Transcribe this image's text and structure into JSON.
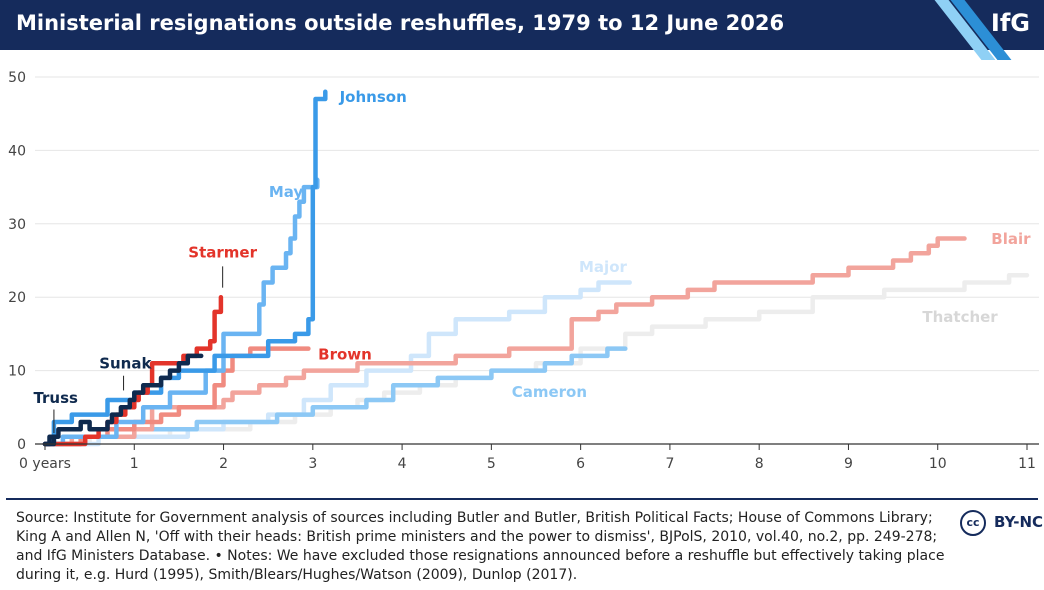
{
  "header": {
    "title": "Ministerial resignations outside reshuffles, 1979 to 12 June 2026",
    "logo": "IfG"
  },
  "footer": {
    "source": "Source: Institute for Government analysis of sources including Butler and Butler, British Political Facts; House of Commons Library; King A and Allen N, 'Off with their heads: British prime ministers and the power to dismiss', BJPolS, 2010, vol.40, no.2, pp. 249-278; and IfG Ministers Database. • Notes: We have excluded those resignations announced before a reshuffle but effectively taking place during it, e.g. Hurd (1995), Smith/Blears/Hughes/Watson (2009), Dunlop (2017).",
    "license_icon": "cc",
    "license": "BY-NC"
  },
  "chart_data": {
    "type": "line",
    "title": "Ministerial resignations outside reshuffles, 1979 to 12 June 2026",
    "xlabel": "",
    "ylabel": "",
    "xlim": [
      0,
      11
    ],
    "ylim": [
      0,
      50
    ],
    "x_ticks": [
      "0 years",
      "1",
      "2",
      "3",
      "4",
      "5",
      "6",
      "7",
      "8",
      "9",
      "10",
      "11"
    ],
    "y_ticks": [
      "0",
      "10",
      "20",
      "30",
      "40",
      "50"
    ],
    "grid": true,
    "series": [
      {
        "name": "Thatcher",
        "color": "#ededed",
        "points": [
          [
            0,
            0
          ],
          [
            0.5,
            0
          ],
          [
            0.5,
            1
          ],
          [
            1.4,
            1
          ],
          [
            1.4,
            2
          ],
          [
            2.3,
            2
          ],
          [
            2.3,
            3
          ],
          [
            2.8,
            3
          ],
          [
            2.8,
            4
          ],
          [
            3.2,
            4
          ],
          [
            3.2,
            5
          ],
          [
            3.5,
            5
          ],
          [
            3.5,
            6
          ],
          [
            3.8,
            6
          ],
          [
            3.8,
            7
          ],
          [
            4.2,
            7
          ],
          [
            4.2,
            8
          ],
          [
            4.6,
            8
          ],
          [
            4.6,
            9
          ],
          [
            5.0,
            9
          ],
          [
            5.0,
            10
          ],
          [
            5.5,
            10
          ],
          [
            5.5,
            11
          ],
          [
            6.0,
            11
          ],
          [
            6.0,
            13
          ],
          [
            6.5,
            13
          ],
          [
            6.5,
            15
          ],
          [
            6.8,
            15
          ],
          [
            6.8,
            16
          ],
          [
            7.4,
            16
          ],
          [
            7.4,
            17
          ],
          [
            8.0,
            17
          ],
          [
            8.0,
            18
          ],
          [
            8.6,
            18
          ],
          [
            8.6,
            20
          ],
          [
            9.4,
            20
          ],
          [
            9.4,
            21
          ],
          [
            10.3,
            21
          ],
          [
            10.3,
            22
          ],
          [
            10.8,
            22
          ],
          [
            10.8,
            23
          ],
          [
            11.0,
            23
          ]
        ]
      },
      {
        "name": "Major",
        "color": "#cfe6fb",
        "points": [
          [
            0,
            0
          ],
          [
            0.6,
            0
          ],
          [
            0.6,
            1
          ],
          [
            1.6,
            1
          ],
          [
            1.6,
            2
          ],
          [
            2.0,
            2
          ],
          [
            2.0,
            3
          ],
          [
            2.5,
            3
          ],
          [
            2.5,
            4
          ],
          [
            2.9,
            4
          ],
          [
            2.9,
            6
          ],
          [
            3.2,
            6
          ],
          [
            3.2,
            8
          ],
          [
            3.6,
            8
          ],
          [
            3.6,
            10
          ],
          [
            4.1,
            10
          ],
          [
            4.1,
            12
          ],
          [
            4.3,
            12
          ],
          [
            4.3,
            15
          ],
          [
            4.6,
            15
          ],
          [
            4.6,
            17
          ],
          [
            5.2,
            17
          ],
          [
            5.2,
            18
          ],
          [
            5.6,
            18
          ],
          [
            5.6,
            20
          ],
          [
            6.0,
            20
          ],
          [
            6.0,
            21
          ],
          [
            6.2,
            21
          ],
          [
            6.2,
            22
          ],
          [
            6.55,
            22
          ]
        ]
      },
      {
        "name": "Cameron",
        "color": "#8cc8f5",
        "points": [
          [
            0,
            0
          ],
          [
            0.4,
            0
          ],
          [
            0.4,
            1
          ],
          [
            1.0,
            1
          ],
          [
            1.0,
            2
          ],
          [
            1.7,
            2
          ],
          [
            1.7,
            3
          ],
          [
            2.6,
            3
          ],
          [
            2.6,
            4
          ],
          [
            3.0,
            4
          ],
          [
            3.0,
            5
          ],
          [
            3.6,
            5
          ],
          [
            3.6,
            6
          ],
          [
            3.9,
            6
          ],
          [
            3.9,
            8
          ],
          [
            4.4,
            8
          ],
          [
            4.4,
            9
          ],
          [
            5.0,
            9
          ],
          [
            5.0,
            10
          ],
          [
            5.6,
            10
          ],
          [
            5.6,
            11
          ],
          [
            5.9,
            11
          ],
          [
            5.9,
            12
          ],
          [
            6.3,
            12
          ],
          [
            6.3,
            13
          ],
          [
            6.5,
            13
          ]
        ]
      },
      {
        "name": "Blair",
        "color": "#f2a49c",
        "points": [
          [
            0,
            0
          ],
          [
            0.3,
            0
          ],
          [
            0.3,
            1
          ],
          [
            1.0,
            1
          ],
          [
            1.0,
            2
          ],
          [
            1.2,
            2
          ],
          [
            1.2,
            5
          ],
          [
            2.0,
            5
          ],
          [
            2.0,
            6
          ],
          [
            2.1,
            6
          ],
          [
            2.1,
            7
          ],
          [
            2.4,
            7
          ],
          [
            2.4,
            8
          ],
          [
            2.7,
            8
          ],
          [
            2.7,
            9
          ],
          [
            2.9,
            9
          ],
          [
            2.9,
            10
          ],
          [
            3.5,
            10
          ],
          [
            3.5,
            11
          ],
          [
            4.6,
            11
          ],
          [
            4.6,
            12
          ],
          [
            5.2,
            12
          ],
          [
            5.2,
            13
          ],
          [
            5.9,
            13
          ],
          [
            5.9,
            17
          ],
          [
            6.2,
            17
          ],
          [
            6.2,
            18
          ],
          [
            6.4,
            18
          ],
          [
            6.4,
            19
          ],
          [
            6.8,
            19
          ],
          [
            6.8,
            20
          ],
          [
            7.2,
            20
          ],
          [
            7.2,
            21
          ],
          [
            7.5,
            21
          ],
          [
            7.5,
            22
          ],
          [
            8.6,
            22
          ],
          [
            8.6,
            23
          ],
          [
            9.0,
            23
          ],
          [
            9.0,
            24
          ],
          [
            9.5,
            24
          ],
          [
            9.5,
            25
          ],
          [
            9.7,
            25
          ],
          [
            9.7,
            26
          ],
          [
            9.9,
            26
          ],
          [
            9.9,
            27
          ],
          [
            10.0,
            27
          ],
          [
            10.0,
            28
          ],
          [
            10.3,
            28
          ]
        ]
      },
      {
        "name": "Brown",
        "color": "#f08b80",
        "points": [
          [
            0,
            0
          ],
          [
            0.4,
            0
          ],
          [
            0.4,
            1
          ],
          [
            0.7,
            1
          ],
          [
            0.7,
            2
          ],
          [
            1.0,
            2
          ],
          [
            1.0,
            3
          ],
          [
            1.3,
            3
          ],
          [
            1.3,
            4
          ],
          [
            1.5,
            4
          ],
          [
            1.5,
            5
          ],
          [
            1.9,
            5
          ],
          [
            1.9,
            8
          ],
          [
            2.0,
            8
          ],
          [
            2.0,
            10
          ],
          [
            2.1,
            10
          ],
          [
            2.1,
            12
          ],
          [
            2.3,
            12
          ],
          [
            2.3,
            13
          ],
          [
            2.95,
            13
          ]
        ]
      },
      {
        "name": "May",
        "color": "#6ab4f2",
        "points": [
          [
            0,
            0
          ],
          [
            0.2,
            0
          ],
          [
            0.2,
            1
          ],
          [
            0.8,
            1
          ],
          [
            0.8,
            3
          ],
          [
            1.1,
            3
          ],
          [
            1.1,
            5
          ],
          [
            1.4,
            5
          ],
          [
            1.4,
            7
          ],
          [
            1.8,
            7
          ],
          [
            1.8,
            10
          ],
          [
            2.0,
            10
          ],
          [
            2.0,
            15
          ],
          [
            2.4,
            15
          ],
          [
            2.4,
            19
          ],
          [
            2.45,
            19
          ],
          [
            2.45,
            22
          ],
          [
            2.55,
            22
          ],
          [
            2.55,
            24
          ],
          [
            2.7,
            24
          ],
          [
            2.7,
            26
          ],
          [
            2.75,
            26
          ],
          [
            2.75,
            28
          ],
          [
            2.8,
            28
          ],
          [
            2.8,
            31
          ],
          [
            2.85,
            31
          ],
          [
            2.85,
            33
          ],
          [
            2.9,
            33
          ],
          [
            2.9,
            35
          ],
          [
            3.05,
            35
          ],
          [
            3.05,
            36
          ]
        ]
      },
      {
        "name": "Johnson",
        "color": "#3a9ae8",
        "points": [
          [
            0,
            0
          ],
          [
            0.1,
            0
          ],
          [
            0.1,
            3
          ],
          [
            0.3,
            3
          ],
          [
            0.3,
            4
          ],
          [
            0.7,
            4
          ],
          [
            0.7,
            6
          ],
          [
            1.0,
            6
          ],
          [
            1.0,
            7
          ],
          [
            1.3,
            7
          ],
          [
            1.3,
            9
          ],
          [
            1.5,
            9
          ],
          [
            1.5,
            10
          ],
          [
            1.9,
            10
          ],
          [
            1.9,
            12
          ],
          [
            2.5,
            12
          ],
          [
            2.5,
            14
          ],
          [
            2.8,
            14
          ],
          [
            2.8,
            15
          ],
          [
            2.95,
            15
          ],
          [
            2.95,
            17
          ],
          [
            3.0,
            17
          ],
          [
            3.0,
            35
          ],
          [
            3.03,
            35
          ],
          [
            3.03,
            47
          ],
          [
            3.14,
            47
          ],
          [
            3.14,
            48
          ]
        ]
      },
      {
        "name": "Starmer",
        "color": "#e3342a",
        "points": [
          [
            0,
            0
          ],
          [
            0.45,
            0
          ],
          [
            0.45,
            1
          ],
          [
            0.6,
            1
          ],
          [
            0.6,
            2
          ],
          [
            0.7,
            2
          ],
          [
            0.7,
            3
          ],
          [
            0.8,
            3
          ],
          [
            0.8,
            4
          ],
          [
            0.9,
            4
          ],
          [
            0.9,
            5
          ],
          [
            1.0,
            5
          ],
          [
            1.0,
            6
          ],
          [
            1.05,
            6
          ],
          [
            1.05,
            7
          ],
          [
            1.15,
            7
          ],
          [
            1.15,
            8
          ],
          [
            1.2,
            8
          ],
          [
            1.2,
            11
          ],
          [
            1.55,
            11
          ],
          [
            1.55,
            12
          ],
          [
            1.7,
            12
          ],
          [
            1.7,
            13
          ],
          [
            1.85,
            13
          ],
          [
            1.85,
            14
          ],
          [
            1.9,
            14
          ],
          [
            1.9,
            18
          ],
          [
            1.97,
            18
          ],
          [
            1.97,
            20
          ]
        ]
      },
      {
        "name": "Sunak",
        "color": "#0f2a4e",
        "points": [
          [
            0,
            0
          ],
          [
            0.1,
            0
          ],
          [
            0.1,
            1
          ],
          [
            0.15,
            1
          ],
          [
            0.15,
            2
          ],
          [
            0.4,
            2
          ],
          [
            0.4,
            3
          ],
          [
            0.5,
            3
          ],
          [
            0.5,
            2
          ],
          [
            0.7,
            2
          ],
          [
            0.7,
            3
          ],
          [
            0.75,
            3
          ],
          [
            0.75,
            4
          ],
          [
            0.85,
            4
          ],
          [
            0.85,
            5
          ],
          [
            0.95,
            5
          ],
          [
            0.95,
            6
          ],
          [
            1.0,
            6
          ],
          [
            1.0,
            7
          ],
          [
            1.1,
            7
          ],
          [
            1.1,
            8
          ],
          [
            1.3,
            8
          ],
          [
            1.3,
            9
          ],
          [
            1.4,
            9
          ],
          [
            1.4,
            10
          ],
          [
            1.5,
            10
          ],
          [
            1.5,
            11
          ],
          [
            1.6,
            11
          ],
          [
            1.6,
            12
          ],
          [
            1.75,
            12
          ]
        ]
      },
      {
        "name": "Truss",
        "color": "#0f2a4e",
        "points": [
          [
            0,
            0
          ],
          [
            0.05,
            0
          ],
          [
            0.05,
            1
          ],
          [
            0.13,
            1
          ]
        ]
      }
    ],
    "series_labels": [
      {
        "text": "Johnson",
        "color": "#3a9ae8",
        "x": 3.3,
        "y": 47.3,
        "anchor": "start"
      },
      {
        "text": "May",
        "color": "#6ab4f2",
        "x": 2.7,
        "y": 34.3,
        "anchor": "middle"
      },
      {
        "text": "Starmer",
        "color": "#e3342a",
        "x": 1.99,
        "y": 26.1,
        "anchor": "middle"
      },
      {
        "text": "Brown",
        "color": "#e3342a",
        "x": 3.06,
        "y": 12.2,
        "anchor": "start"
      },
      {
        "text": "Sunak",
        "color": "#0f2a4e",
        "x": 0.9,
        "y": 11.0,
        "anchor": "middle"
      },
      {
        "text": "Truss",
        "color": "#0f2a4e",
        "x": 0.12,
        "y": 6.3,
        "anchor": "middle"
      },
      {
        "text": "Major",
        "color": "#cfe6fb",
        "x": 6.25,
        "y": 24.1,
        "anchor": "middle"
      },
      {
        "text": "Cameron",
        "color": "#8cc8f5",
        "x": 5.65,
        "y": 7.1,
        "anchor": "middle"
      },
      {
        "text": "Blair",
        "color": "#f2a49c",
        "x": 10.6,
        "y": 27.9,
        "anchor": "start"
      },
      {
        "text": "Thatcher",
        "color": "#d7d7d7",
        "x": 10.25,
        "y": 17.3,
        "anchor": "middle"
      }
    ]
  }
}
